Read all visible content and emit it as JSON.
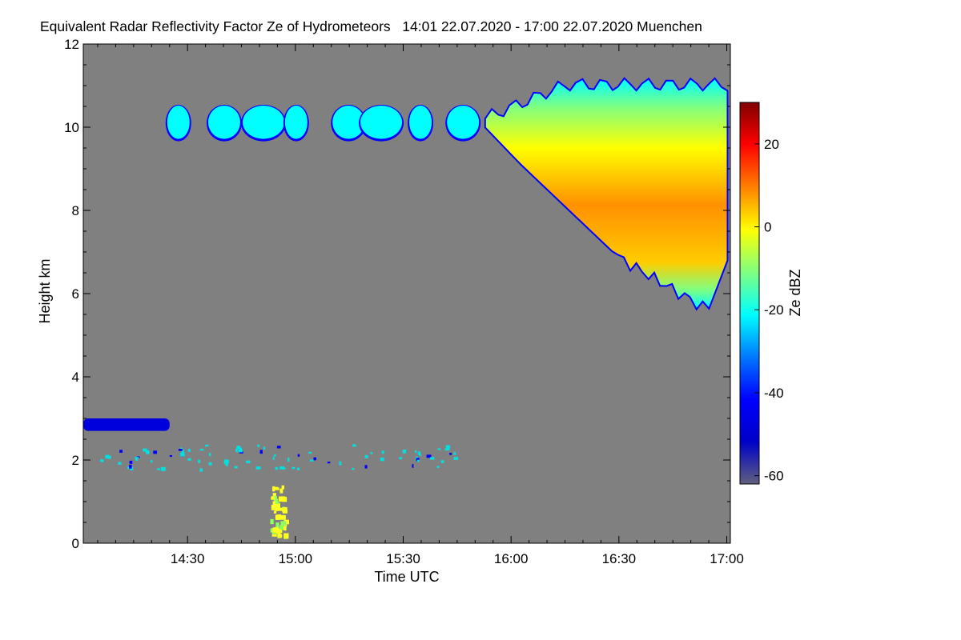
{
  "chart_data": {
    "type": "heatmap",
    "title": "Equivalent Radar Reflectivity Factor Ze of Hydrometeors   14:01 22.07.2020 - 17:00 22.07.2020 Muenchen",
    "xlabel": "Time UTC",
    "ylabel": "Height km",
    "colorbar_label": "Ze dBZ",
    "x_tick_labels": [
      "14:30",
      "15:00",
      "15:30",
      "16:00",
      "16:30",
      "17:00"
    ],
    "x_ticks_minutes": [
      870,
      900,
      930,
      960,
      990,
      1020
    ],
    "xlim_minutes": [
      841,
      1021
    ],
    "xlim": [
      "14:01",
      "17:00"
    ],
    "y_ticks": [
      0,
      2,
      4,
      6,
      8,
      10,
      12
    ],
    "ylim": [
      0,
      12
    ],
    "colorbar_ticks": [
      -60,
      -40,
      -20,
      0,
      20
    ],
    "colorbar_range": [
      -62,
      30
    ],
    "background_color": "#808080",
    "colormap": [
      "#606080",
      "#0000c8",
      "#0000ff",
      "#0078ff",
      "#00ffff",
      "#80ff80",
      "#ffff00",
      "#ff8000",
      "#ff0000",
      "#800000"
    ],
    "features": [
      {
        "name": "high-cirrus-patches",
        "time_range": [
          "14:22",
          "15:53"
        ],
        "height_km": [
          9.7,
          10.5
        ],
        "ze_dbz": [
          -40,
          -25
        ]
      },
      {
        "name": "anvil-cloud",
        "time_range": [
          "15:53",
          "17:00"
        ],
        "height_km": [
          5.6,
          11.5
        ],
        "ze_dbz": [
          -40,
          10
        ]
      },
      {
        "name": "low-layer",
        "time_range": [
          "14:01",
          "14:25"
        ],
        "height_km": [
          2.7,
          3.0
        ],
        "ze_dbz": [
          -45,
          -40
        ]
      },
      {
        "name": "boundary-layer-clutter",
        "time_range": [
          "14:05",
          "15:45"
        ],
        "height_km": [
          1.8,
          2.4
        ],
        "ze_dbz": [
          -30,
          -20
        ]
      },
      {
        "name": "insects-near-ground",
        "time_range": [
          "14:53",
          "14:57"
        ],
        "height_km": [
          0.2,
          1.4
        ],
        "ze_dbz": [
          -10,
          -2
        ]
      }
    ]
  }
}
